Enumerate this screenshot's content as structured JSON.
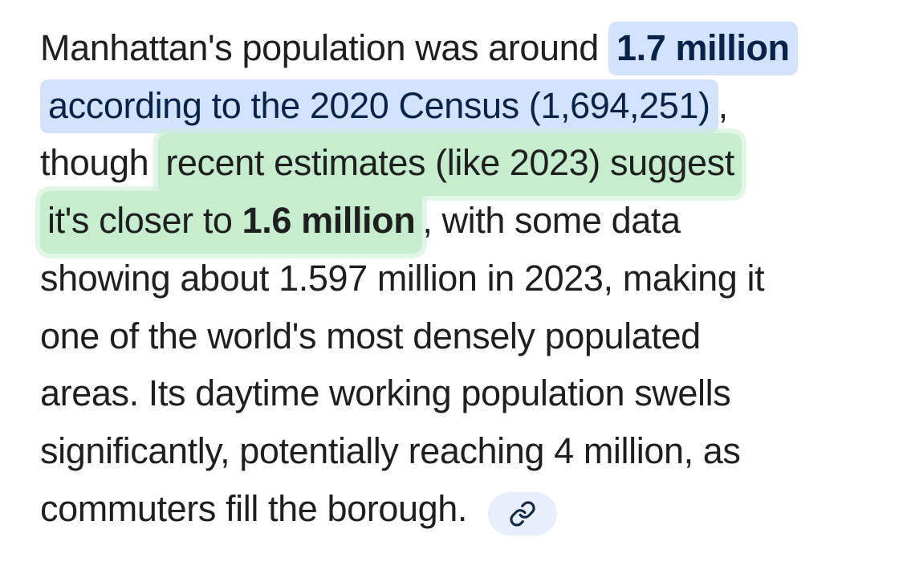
{
  "page": {
    "background": "#ffffff"
  },
  "colors": {
    "body_text": "#1f1f1f",
    "citation_highlight_bg": "#d3e3fd",
    "citation_text": "#09224a",
    "marker_highlight_bg": "#c6edce",
    "marker_highlight_halo": "#ddf3e2",
    "link_chip_bg": "#e8eefc",
    "link_icon": "#0e2a47"
  },
  "icons": {
    "link_chip_icon": "link-icon"
  },
  "paragraph": {
    "lines": [
      {
        "segments": [
          {
            "highlight": "none",
            "parts": [
              {
                "text": "Manhattan's population was around ",
                "bold": false
              }
            ]
          },
          {
            "highlight": "citation",
            "parts": [
              {
                "text": "1.7 million",
                "bold": true
              }
            ]
          }
        ]
      },
      {
        "segments": [
          {
            "highlight": "citation",
            "parts": [
              {
                "text": "according to the 2020 Census (1,694,251)",
                "bold": false
              }
            ]
          },
          {
            "highlight": "none",
            "parts": [
              {
                "text": ",",
                "bold": false
              }
            ]
          }
        ]
      },
      {
        "segments": [
          {
            "highlight": "none",
            "parts": [
              {
                "text": "though ",
                "bold": false
              }
            ]
          },
          {
            "highlight": "marker",
            "parts": [
              {
                "text": "recent estimates (like 2023) suggest",
                "bold": false
              }
            ]
          }
        ]
      },
      {
        "segments": [
          {
            "highlight": "marker",
            "parts": [
              {
                "text": "it's closer to ",
                "bold": false
              },
              {
                "text": "1.6 million",
                "bold": true
              }
            ]
          },
          {
            "highlight": "none",
            "parts": [
              {
                "text": ", with some data",
                "bold": false
              }
            ]
          }
        ]
      },
      {
        "segments": [
          {
            "highlight": "none",
            "parts": [
              {
                "text": "showing about 1.597 million in 2023, making it",
                "bold": false
              }
            ]
          }
        ]
      },
      {
        "segments": [
          {
            "highlight": "none",
            "parts": [
              {
                "text": "one of the world's most densely populated",
                "bold": false
              }
            ]
          }
        ]
      },
      {
        "segments": [
          {
            "highlight": "none",
            "parts": [
              {
                "text": "areas. Its daytime working population swells",
                "bold": false
              }
            ]
          }
        ]
      },
      {
        "segments": [
          {
            "highlight": "none",
            "parts": [
              {
                "text": "significantly, potentially reaching 4 million, as",
                "bold": false
              }
            ]
          }
        ]
      },
      {
        "segments": [
          {
            "highlight": "none",
            "parts": [
              {
                "text": "commuters fill the borough. ",
                "bold": false
              }
            ]
          },
          {
            "type": "chip"
          }
        ]
      }
    ]
  }
}
